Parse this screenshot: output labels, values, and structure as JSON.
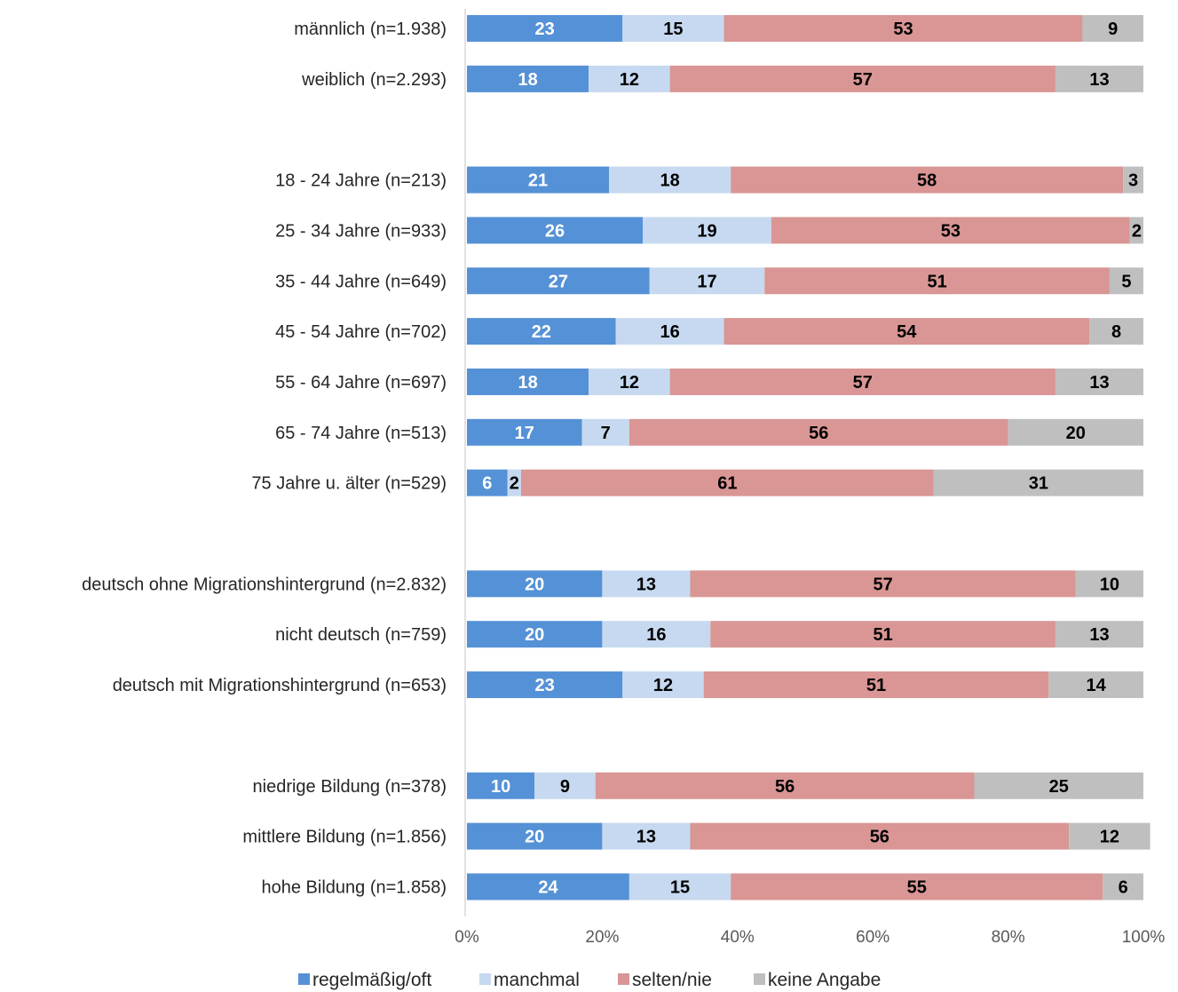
{
  "chart_data": {
    "type": "bar",
    "orientation": "horizontal",
    "stacked": "percent",
    "categories": [
      "männlich (n=1.938)",
      "weiblich (n=2.293)",
      "",
      "18 - 24 Jahre (n=213)",
      "25 - 34 Jahre (n=933)",
      "35 - 44 Jahre (n=649)",
      "45 - 54 Jahre (n=702)",
      "55 - 64 Jahre (n=697)",
      "65 - 74 Jahre (n=513)",
      "75 Jahre u. älter (n=529)",
      "",
      "deutsch ohne Migrationshintergrund (n=2.832)",
      "nicht deutsch (n=759)",
      "deutsch mit Migrationshintergrund (n=653)",
      "",
      "niedrige Bildung (n=378)",
      "mittlere Bildung (n=1.856)",
      "hohe Bildung (n=1.858)"
    ],
    "series": [
      {
        "name": "regelmäßig/oft",
        "color": "#5591d6",
        "label_color": "#ffffff",
        "values": [
          23,
          18,
          null,
          21,
          26,
          27,
          22,
          18,
          17,
          6,
          null,
          20,
          20,
          23,
          null,
          10,
          20,
          24
        ]
      },
      {
        "name": "manchmal",
        "color": "#c6d9f0",
        "label_color": "#000000",
        "values": [
          15,
          12,
          null,
          18,
          19,
          17,
          16,
          12,
          7,
          2,
          null,
          13,
          16,
          12,
          null,
          9,
          13,
          15
        ]
      },
      {
        "name": "selten/nie",
        "color": "#d99694",
        "label_color": "#000000",
        "values": [
          53,
          57,
          null,
          58,
          53,
          51,
          54,
          57,
          56,
          61,
          null,
          57,
          51,
          51,
          null,
          56,
          56,
          55
        ]
      },
      {
        "name": "keine Angabe",
        "color": "#bfbfbf",
        "label_color": "#000000",
        "values": [
          9,
          13,
          null,
          3,
          2,
          5,
          8,
          13,
          20,
          31,
          null,
          10,
          13,
          14,
          null,
          25,
          12,
          6
        ]
      }
    ],
    "xlim": [
      0,
      100
    ],
    "x_ticks": [
      "0%",
      "20%",
      "40%",
      "60%",
      "80%",
      "100%"
    ],
    "title": "",
    "xlabel": "",
    "ylabel": "",
    "grid": false,
    "legend_position": "bottom-center"
  }
}
